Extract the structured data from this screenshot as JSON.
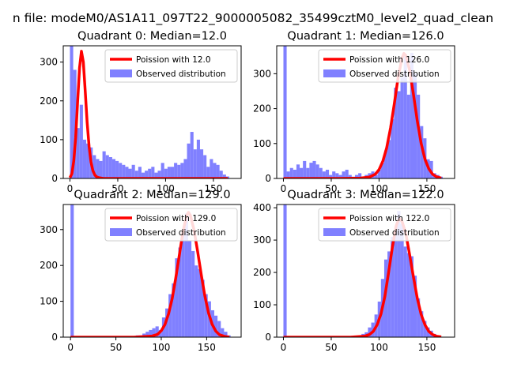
{
  "figure": {
    "suptitle": "n file: modeM0/AS1A11_097T22_9000005082_35499cztM0_level2_quad_clean"
  },
  "colors": {
    "hist": "#8080ff",
    "poisson_line": "#ff0000",
    "legend_border": "#cccccc"
  },
  "chart_data": [
    {
      "type": "bar+line",
      "title": "Quadrant 0: Median=12.0",
      "median": 12.0,
      "xlim": [
        -7,
        179
      ],
      "ylim": [
        0,
        342
      ],
      "xticks": [
        0,
        50,
        100,
        150
      ],
      "yticks": [
        0,
        100,
        200,
        300
      ],
      "legend": [
        "Poission with 12.0",
        "Observed distribution"
      ],
      "legend_position": "upper right",
      "bin_width": 3.4,
      "histogram": {
        "bin_starts": [
          0,
          3.4,
          6.8,
          10.2,
          13.6,
          17,
          20.4,
          23.8,
          27.2,
          30.6,
          34,
          37.4,
          40.8,
          44.2,
          47.6,
          51,
          54.4,
          57.8,
          61.2,
          64.6,
          68,
          71.4,
          74.8,
          78.2,
          81.6,
          85,
          88.4,
          91.8,
          95.2,
          98.6,
          102,
          105.4,
          108.8,
          112.2,
          115.6,
          119,
          122.4,
          125.8,
          129.2,
          132.6,
          136,
          139.4,
          142.8,
          146.2,
          149.6,
          153,
          156.4,
          159.8,
          163.2
        ],
        "counts": [
          345,
          280,
          130,
          190,
          100,
          90,
          80,
          60,
          50,
          45,
          70,
          60,
          55,
          50,
          45,
          40,
          35,
          30,
          25,
          35,
          20,
          30,
          15,
          20,
          25,
          30,
          15,
          20,
          40,
          25,
          30,
          30,
          40,
          35,
          40,
          50,
          90,
          120,
          75,
          100,
          75,
          60,
          30,
          50,
          40,
          35,
          20,
          10,
          5
        ]
      },
      "poisson": {
        "x": [
          0,
          2,
          4,
          6,
          8,
          10,
          12,
          14,
          16,
          18,
          20,
          22,
          24,
          26,
          28,
          30,
          35,
          40,
          50,
          60,
          80,
          100,
          120,
          140,
          165
        ],
        "y": [
          2,
          12,
          45,
          105,
          195,
          285,
          328,
          300,
          225,
          145,
          82,
          42,
          20,
          9,
          4,
          2,
          0,
          0,
          0,
          0,
          0,
          0,
          0,
          0,
          0
        ]
      }
    },
    {
      "type": "bar+line",
      "title": "Quadrant 1: Median=126.0",
      "median": 126.0,
      "xlim": [
        -7,
        179
      ],
      "ylim": [
        0,
        380
      ],
      "xticks": [
        0,
        50,
        100,
        150
      ],
      "yticks": [
        0,
        100,
        200,
        300
      ],
      "legend": [
        "Poission with 126.0",
        "Observed distribution"
      ],
      "legend_position": "upper right",
      "bin_width": 3.4,
      "histogram": {
        "bin_starts": [
          0,
          3.4,
          6.8,
          10.2,
          13.6,
          17,
          20.4,
          23.8,
          27.2,
          30.6,
          34,
          37.4,
          40.8,
          44.2,
          47.6,
          51,
          54.4,
          57.8,
          61.2,
          64.6,
          68,
          71.4,
          74.8,
          78.2,
          81.6,
          85,
          88.4,
          91.8,
          95.2,
          98.6,
          102,
          105.4,
          108.8,
          112.2,
          115.6,
          119,
          122.4,
          125.8,
          129.2,
          132.6,
          136,
          139.4,
          142.8,
          146.2,
          149.6,
          153,
          156.4,
          159.8,
          163.2
        ],
        "counts": [
          380,
          20,
          30,
          25,
          40,
          30,
          50,
          30,
          45,
          50,
          40,
          30,
          20,
          25,
          10,
          20,
          15,
          10,
          20,
          25,
          10,
          5,
          10,
          15,
          5,
          10,
          15,
          20,
          10,
          25,
          45,
          80,
          110,
          170,
          260,
          250,
          290,
          350,
          240,
          360,
          300,
          240,
          150,
          115,
          55,
          50,
          15,
          10,
          5
        ]
      },
      "poisson": {
        "x": [
          0,
          60,
          80,
          90,
          96,
          100,
          104,
          108,
          112,
          116,
          120,
          124,
          126,
          128,
          132,
          136,
          140,
          144,
          148,
          152,
          156,
          160,
          165
        ],
        "y": [
          0,
          0,
          1,
          4,
          12,
          25,
          50,
          88,
          145,
          215,
          290,
          345,
          358,
          352,
          310,
          240,
          165,
          100,
          55,
          28,
          12,
          5,
          1
        ]
      }
    },
    {
      "type": "bar+line",
      "title": "Quadrant 2: Median=129.0",
      "median": 129.0,
      "xlim": [
        -8,
        188
      ],
      "ylim": [
        0,
        370
      ],
      "xticks": [
        0,
        50,
        100,
        150
      ],
      "yticks": [
        0,
        100,
        200,
        300
      ],
      "legend": [
        "Poission with 129.0",
        "Observed distribution"
      ],
      "legend_position": "upper right",
      "bin_width": 3.6,
      "histogram": {
        "bin_starts": [
          0,
          72,
          75.6,
          79.2,
          82.8,
          86.4,
          90,
          93.6,
          97.2,
          100.8,
          104.4,
          108,
          111.6,
          115.2,
          118.8,
          122.4,
          126,
          129.6,
          133.2,
          136.8,
          140.4,
          144,
          147.6,
          151.2,
          154.8,
          158.4,
          162,
          165.6,
          169.2,
          172.8
        ],
        "counts": [
          370,
          5,
          5,
          10,
          15,
          20,
          25,
          30,
          20,
          55,
          80,
          120,
          150,
          220,
          250,
          290,
          345,
          270,
          240,
          200,
          190,
          160,
          120,
          100,
          75,
          60,
          45,
          25,
          15,
          5
        ]
      },
      "poisson": {
        "x": [
          0,
          70,
          90,
          96,
          100,
          104,
          108,
          112,
          116,
          120,
          124,
          128,
          130,
          132,
          136,
          140,
          144,
          148,
          152,
          156,
          160,
          164,
          170,
          175
        ],
        "y": [
          0,
          0,
          3,
          8,
          18,
          35,
          65,
          108,
          165,
          230,
          295,
          340,
          348,
          340,
          300,
          240,
          175,
          115,
          68,
          36,
          17,
          7,
          2,
          0
        ]
      }
    },
    {
      "type": "bar+line",
      "title": "Quadrant 3: Median=122.0",
      "median": 122.0,
      "xlim": [
        -7,
        179
      ],
      "ylim": [
        0,
        410
      ],
      "xticks": [
        0,
        50,
        100,
        150
      ],
      "yticks": [
        0,
        100,
        200,
        300,
        400
      ],
      "legend": [
        "Poission with 122.0",
        "Observed distribution"
      ],
      "legend_position": "upper right",
      "bin_width": 3.4,
      "histogram": {
        "bin_starts": [
          0,
          78.2,
          81.6,
          85,
          88.4,
          91.8,
          95.2,
          98.6,
          102,
          105.4,
          108.8,
          112.2,
          115.6,
          119,
          122.4,
          125.8,
          129.2,
          132.6,
          136,
          139.4,
          142.8,
          146.2,
          149.6,
          153,
          156.4,
          159.8
        ],
        "counts": [
          410,
          5,
          10,
          15,
          30,
          45,
          70,
          110,
          180,
          240,
          265,
          310,
          330,
          390,
          350,
          280,
          260,
          250,
          190,
          120,
          80,
          50,
          30,
          20,
          10,
          5
        ]
      },
      "poisson": {
        "x": [
          0,
          70,
          85,
          90,
          94,
          98,
          102,
          106,
          110,
          114,
          118,
          120,
          122,
          124,
          128,
          132,
          136,
          140,
          144,
          148,
          152,
          156,
          160,
          165
        ],
        "y": [
          0,
          0,
          3,
          8,
          18,
          38,
          72,
          125,
          200,
          280,
          345,
          360,
          365,
          358,
          320,
          255,
          185,
          120,
          70,
          38,
          18,
          8,
          3,
          1
        ]
      }
    }
  ]
}
